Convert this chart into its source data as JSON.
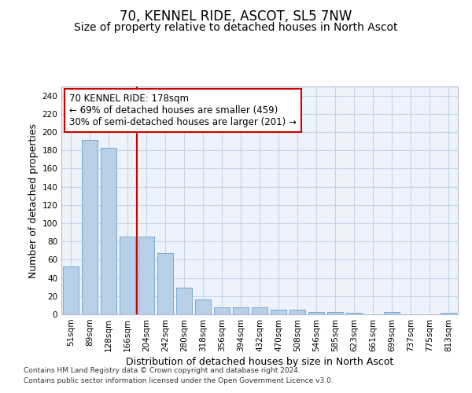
{
  "title": "70, KENNEL RIDE, ASCOT, SL5 7NW",
  "subtitle": "Size of property relative to detached houses in North Ascot",
  "xlabel": "Distribution of detached houses by size in North Ascot",
  "ylabel": "Number of detached properties",
  "categories": [
    "51sqm",
    "89sqm",
    "128sqm",
    "166sqm",
    "204sqm",
    "242sqm",
    "280sqm",
    "318sqm",
    "356sqm",
    "394sqm",
    "432sqm",
    "470sqm",
    "508sqm",
    "546sqm",
    "585sqm",
    "623sqm",
    "661sqm",
    "699sqm",
    "737sqm",
    "775sqm",
    "813sqm"
  ],
  "values": [
    53,
    191,
    183,
    85,
    85,
    67,
    29,
    16,
    8,
    8,
    8,
    5,
    5,
    3,
    3,
    2,
    0,
    3,
    0,
    0,
    2
  ],
  "bar_color": "#b8cfe8",
  "bar_edge_color": "#7aaad0",
  "vline_x": 3.5,
  "vline_color": "#cc0000",
  "annotation_line1": "70 KENNEL RIDE: 178sqm",
  "annotation_line2": "← 69% of detached houses are smaller (459)",
  "annotation_line3": "30% of semi-detached houses are larger (201) →",
  "annotation_box_color": "#ffffff",
  "annotation_box_edge": "#cc0000",
  "ylim": [
    0,
    250
  ],
  "yticks": [
    0,
    20,
    40,
    60,
    80,
    100,
    120,
    140,
    160,
    180,
    200,
    220,
    240
  ],
  "footer1": "Contains HM Land Registry data © Crown copyright and database right 2024.",
  "footer2": "Contains public sector information licensed under the Open Government Licence v3.0.",
  "grid_color": "#c8d4e8",
  "background_color": "#edf2fb",
  "title_fontsize": 12,
  "subtitle_fontsize": 10,
  "axis_label_fontsize": 9,
  "tick_fontsize": 7.5,
  "annotation_fontsize": 8.5,
  "footer_fontsize": 6.5
}
